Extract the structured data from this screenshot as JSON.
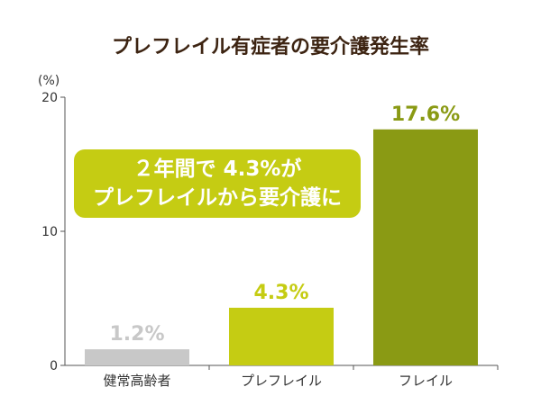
{
  "title": "プレフレイル有症者の要介護発生率",
  "callout": {
    "line1": "２年間で 4.3%が",
    "line2": "プレフレイルから要介護に"
  },
  "colors": {
    "bar_healthy": "#c8c8c8",
    "bar_prefrail": "#c5cc13",
    "bar_frail": "#8a9a14",
    "callout_bg": "#c5cc13",
    "title": "#3d2412"
  },
  "chart_data": {
    "type": "bar",
    "title": "プレフレイル有症者の要介護発生率",
    "ylabel": "(%)",
    "xlabel": "",
    "ylim": [
      0,
      20
    ],
    "yticks": [
      0,
      10,
      20
    ],
    "categories": [
      "健常高齢者",
      "プレフレイル",
      "フレイル"
    ],
    "values": [
      1.2,
      4.3,
      17.6
    ],
    "data_labels": [
      "1.2%",
      "4.3%",
      "17.6%"
    ],
    "bar_colors": [
      "#c8c8c8",
      "#c5cc13",
      "#8a9a14"
    ],
    "label_colors": [
      "#c8c8c8",
      "#c5cc13",
      "#8a9a14"
    ],
    "grid": false,
    "legend": "none"
  }
}
